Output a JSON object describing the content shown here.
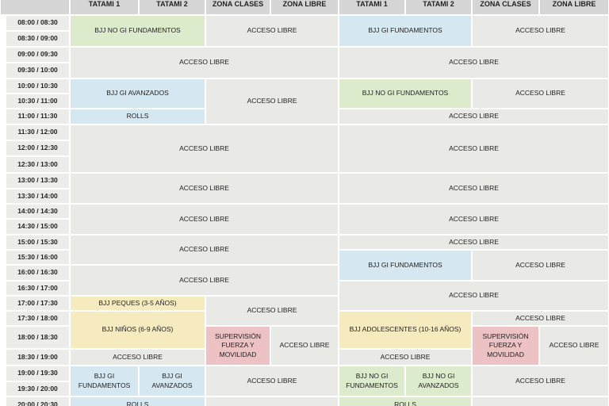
{
  "headers": [
    "TATAMI 1",
    "TATAMI 2",
    "ZONA CLASES",
    "ZONA LIBRE",
    "TATAMI 1",
    "TATAMI 2",
    "ZONA CLASES",
    "ZONA LIBRE"
  ],
  "times": [
    "08:00 / 08:30",
    "08:30 / 09:00",
    "09:00 / 09:30",
    "09:30 / 10:00",
    "10:00 / 10:30",
    "10:30 / 11:00",
    "11:00 / 11:30",
    "11:30 / 12:00",
    "12:00 / 12:30",
    "12:30 / 13:00",
    "13:00 / 13:30",
    "13:30 / 14:00",
    "14:00 / 14:30",
    "14:30 / 15:00",
    "15:00 / 15:30",
    "15:30 / 16:00",
    "16:00 / 16:30",
    "16:30 / 17:00",
    "17:00 / 17:30",
    "17:30 / 18:00",
    "18:00 / 18:30",
    "18:30 / 19:00",
    "19:00 / 19:30",
    "19:30 / 20:00",
    "20:00 / 20:30"
  ],
  "colors": {
    "header": "#d6d6d6",
    "time": "#ececeb",
    "free": "#e9e9e6",
    "green": "#dcebcc",
    "blue": "#d5e7f1",
    "yellow": "#f6ebbf",
    "pink": "#ecc2c4"
  },
  "blocks": [
    {
      "name": "class-bjj-no-gi-fundamentos",
      "label": "BJJ NO GI FUNDAMENTOS",
      "c": [
        0,
        0
      ],
      "r": [
        0,
        1
      ],
      "color": "green"
    },
    {
      "name": "acceso-libre-block",
      "label": "ACCESO LIBRE",
      "c": [
        1,
        2
      ],
      "r": [
        0,
        1
      ],
      "color": "free"
    },
    {
      "name": "class-bjj-gi-fundamentos",
      "label": "BJJ GI FUNDAMENTOS",
      "c": [
        3,
        3
      ],
      "r": [
        0,
        1
      ],
      "color": "blue"
    },
    {
      "name": "acceso-libre-block",
      "label": "ACCESO LIBRE",
      "c": [
        4,
        5
      ],
      "r": [
        0,
        1
      ],
      "color": "free"
    },
    {
      "name": "acceso-libre-block",
      "label": "ACCESO LIBRE",
      "c": [
        0,
        2
      ],
      "r": [
        2,
        3
      ],
      "color": "free"
    },
    {
      "name": "acceso-libre-block",
      "label": "ACCESO LIBRE",
      "c": [
        3,
        5
      ],
      "r": [
        2,
        3
      ],
      "color": "free"
    },
    {
      "name": "class-bjj-gi-avanzados",
      "label": "BJJ GI AVANZADOS",
      "c": [
        0,
        0
      ],
      "r": [
        4,
        5
      ],
      "color": "blue"
    },
    {
      "name": "acceso-libre-block",
      "label": "ACCESO LIBRE",
      "c": [
        1,
        2
      ],
      "r": [
        4,
        6
      ],
      "color": "free"
    },
    {
      "name": "class-bjj-no-gi-fundamentos",
      "label": "BJJ NO GI FUNDAMENTOS",
      "c": [
        3,
        3
      ],
      "r": [
        4,
        5
      ],
      "color": "green"
    },
    {
      "name": "acceso-libre-block",
      "label": "ACCESO LIBRE",
      "c": [
        4,
        5
      ],
      "r": [
        4,
        5
      ],
      "color": "free"
    },
    {
      "name": "class-rolls",
      "label": "ROLLS",
      "c": [
        0,
        0
      ],
      "r": [
        6,
        6
      ],
      "color": "blue"
    },
    {
      "name": "acceso-libre-block",
      "label": "ACCESO LIBRE",
      "c": [
        3,
        5
      ],
      "r": [
        6,
        6
      ],
      "color": "free"
    },
    {
      "name": "acceso-libre-block",
      "label": "ACCESO LIBRE",
      "c": [
        0,
        2
      ],
      "r": [
        7,
        9
      ],
      "color": "free"
    },
    {
      "name": "acceso-libre-block",
      "label": "ACCESO LIBRE",
      "c": [
        3,
        5
      ],
      "r": [
        7,
        9
      ],
      "color": "free"
    },
    {
      "name": "acceso-libre-block",
      "label": "ACCESO LIBRE",
      "c": [
        0,
        2
      ],
      "r": [
        10,
        11
      ],
      "color": "free"
    },
    {
      "name": "acceso-libre-block",
      "label": "ACCESO LIBRE",
      "c": [
        3,
        5
      ],
      "r": [
        10,
        11
      ],
      "color": "free"
    },
    {
      "name": "acceso-libre-block",
      "label": "ACCESO LIBRE",
      "c": [
        0,
        2
      ],
      "r": [
        12,
        13
      ],
      "color": "free"
    },
    {
      "name": "acceso-libre-block",
      "label": "ACCESO LIBRE",
      "c": [
        3,
        5
      ],
      "r": [
        12,
        13
      ],
      "color": "free"
    },
    {
      "name": "acceso-libre-block",
      "label": "ACCESO LIBRE",
      "c": [
        0,
        2
      ],
      "r": [
        14,
        15
      ],
      "color": "free"
    },
    {
      "name": "acceso-libre-block",
      "label": "ACCESO LIBRE",
      "c": [
        3,
        5
      ],
      "r": [
        14,
        14
      ],
      "color": "free"
    },
    {
      "name": "class-bjj-gi-fundamentos",
      "label": "BJJ GI FUNDAMENTOS",
      "c": [
        3,
        3
      ],
      "r": [
        15,
        16
      ],
      "color": "blue"
    },
    {
      "name": "acceso-libre-block",
      "label": "ACCESO LIBRE",
      "c": [
        4,
        5
      ],
      "r": [
        15,
        16
      ],
      "color": "free"
    },
    {
      "name": "acceso-libre-block",
      "label": "ACCESO LIBRE",
      "c": [
        0,
        2
      ],
      "r": [
        16,
        17
      ],
      "color": "free"
    },
    {
      "name": "acceso-libre-block",
      "label": "ACCESO LIBRE",
      "c": [
        3,
        5
      ],
      "r": [
        17,
        18
      ],
      "color": "free"
    },
    {
      "name": "class-bjj-peques",
      "label": "BJJ PEQUES (3-5 AÑOS)",
      "c": [
        0,
        0
      ],
      "r": [
        18,
        18
      ],
      "color": "yellow"
    },
    {
      "name": "acceso-libre-block",
      "label": "ACCESO LIBRE",
      "c": [
        1,
        2
      ],
      "r": [
        18,
        19
      ],
      "color": "free"
    },
    {
      "name": "class-bjj-ninos",
      "label": "BJJ NIÑOS (6-9 AÑOS)",
      "c": [
        0,
        0
      ],
      "r": [
        19,
        20
      ],
      "color": "yellow"
    },
    {
      "name": "class-bjj-adolescentes",
      "label": "BJJ ADOLESCENTES (10-16 AÑOS)",
      "c": [
        3,
        3
      ],
      "r": [
        19,
        20
      ],
      "color": "yellow"
    },
    {
      "name": "acceso-libre-block",
      "label": "ACCESO LIBRE",
      "c": [
        4,
        5
      ],
      "r": [
        19,
        19
      ],
      "color": "free"
    },
    {
      "name": "class-supervision-fuerza-movilidad",
      "label": "SUPERVISIÓN FUERZA Y MOVILIDAD",
      "c": [
        1,
        1
      ],
      "r": [
        20,
        21
      ],
      "color": "pink"
    },
    {
      "name": "acceso-libre-block",
      "label": "ACCESO LIBRE",
      "c": [
        2,
        2
      ],
      "r": [
        20,
        21
      ],
      "color": "free"
    },
    {
      "name": "class-supervision-fuerza-movilidad",
      "label": "SUPERVISIÓN FUERZA Y MOVILIDAD",
      "c": [
        4,
        4
      ],
      "r": [
        20,
        21
      ],
      "color": "pink"
    },
    {
      "name": "acceso-libre-block",
      "label": "ACCESO LIBRE",
      "c": [
        5,
        5
      ],
      "r": [
        20,
        21
      ],
      "color": "free"
    },
    {
      "name": "acceso-libre-block",
      "label": "ACCESO LIBRE",
      "c": [
        0,
        0
      ],
      "r": [
        21,
        21
      ],
      "color": "free"
    },
    {
      "name": "acceso-libre-block",
      "label": "ACCESO LIBRE",
      "c": [
        3,
        3
      ],
      "r": [
        21,
        21
      ],
      "color": "free"
    },
    {
      "name": "class-bjj-gi-fundamentos",
      "label": "BJJ GI FUNDAMENTOS",
      "c": [
        0,
        0
      ],
      "r": [
        22,
        23
      ],
      "color": "blue"
    },
    {
      "name": "class-bjj-gi-avanzados",
      "label": "BJJ GI AVANZADOS",
      "c": [
        1,
        1
      ],
      "r": [
        22,
        23
      ],
      "color": "blue"
    },
    {
      "name": "acceso-libre-block",
      "label": "ACCESO LIBRE",
      "c": [
        2,
        2
      ],
      "r": [
        22,
        23
      ],
      "color": "free"
    },
    {
      "name": "class-bjj-no-gi-fundamentos",
      "label": "BJJ NO GI FUNDAMENTOS",
      "c": [
        3,
        3
      ],
      "r": [
        22,
        23
      ],
      "color": "green"
    },
    {
      "name": "class-bjj-no-gi-avanzados",
      "label": "BJJ NO GI AVANZADOS",
      "c": [
        4,
        4
      ],
      "r": [
        22,
        23
      ],
      "color": "green"
    },
    {
      "name": "acceso-libre-block",
      "label": "ACCESO LIBRE",
      "c": [
        5,
        5
      ],
      "r": [
        22,
        23
      ],
      "color": "free"
    },
    {
      "name": "class-rolls",
      "label": "ROLLS",
      "c": [
        0,
        1
      ],
      "r": [
        24,
        24
      ],
      "color": "blue"
    },
    {
      "name": "acceso-libre-block",
      "label": "",
      "c": [
        2,
        2
      ],
      "r": [
        24,
        24
      ],
      "color": "free"
    },
    {
      "name": "class-rolls",
      "label": "ROLLS",
      "c": [
        3,
        4
      ],
      "r": [
        24,
        24
      ],
      "color": "green"
    },
    {
      "name": "acceso-libre-block",
      "label": "",
      "c": [
        5,
        5
      ],
      "r": [
        24,
        24
      ],
      "color": "free"
    }
  ]
}
